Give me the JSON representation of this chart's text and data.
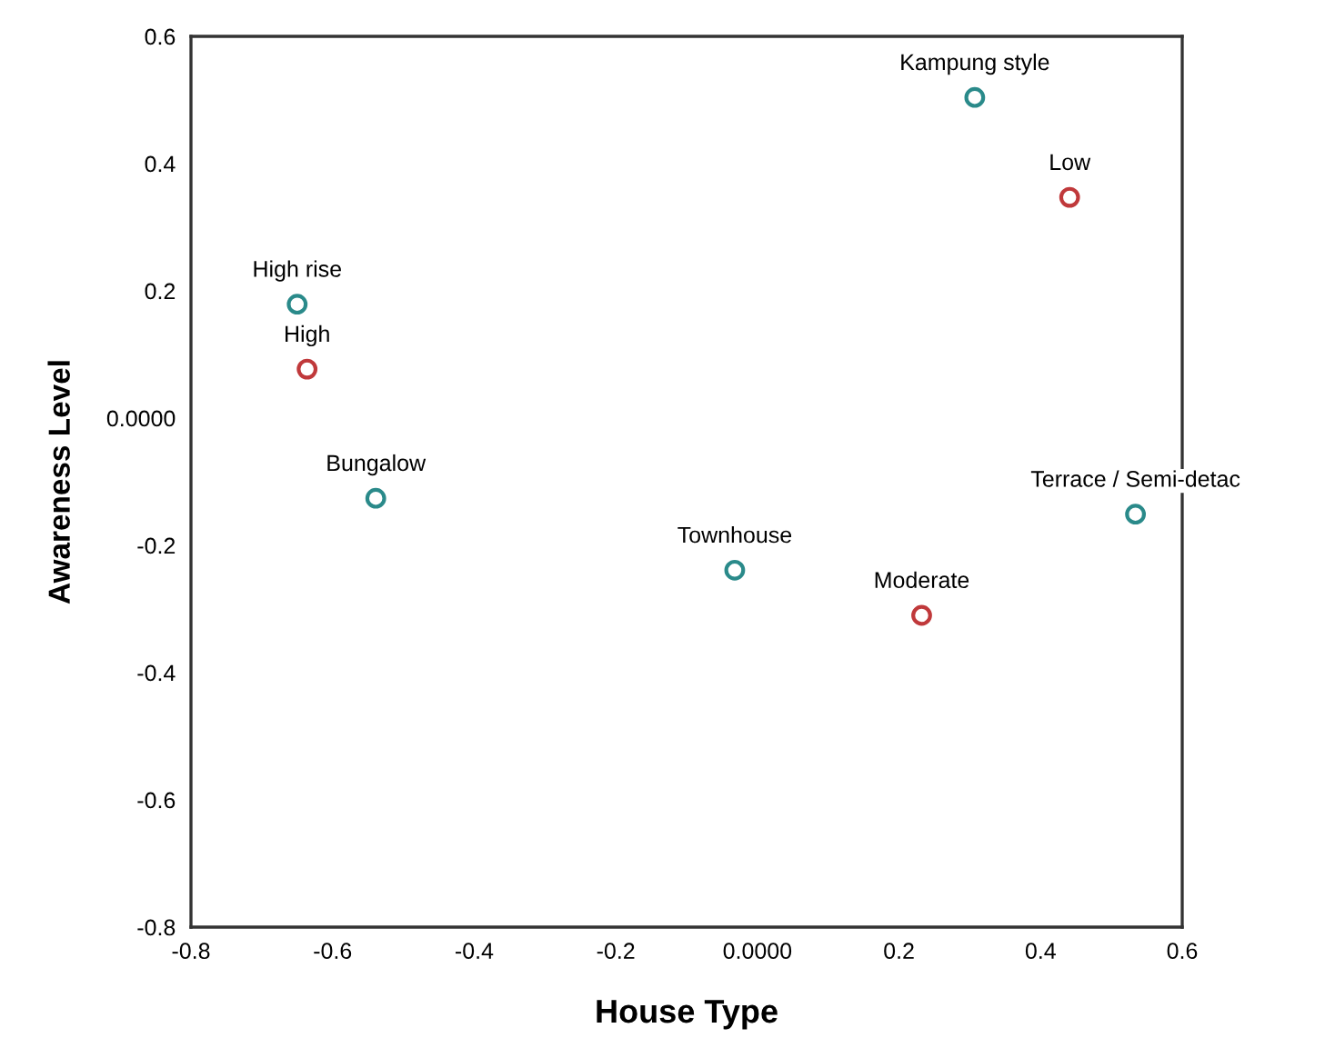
{
  "chart_data": {
    "type": "scatter",
    "xlabel": "House Type",
    "ylabel": "Awareness Level",
    "series": [
      {
        "color": "#2a8a8a",
        "x": [
          0.307,
          -0.65,
          -0.539,
          0.534,
          -0.032
        ],
        "values": [
          0.504,
          0.179,
          -0.126,
          -0.151,
          -0.239
        ]
      },
      {
        "color": "#c0393b",
        "x": [
          0.441,
          -0.636,
          0.232
        ],
        "values": [
          0.347,
          0.077,
          -0.31
        ]
      }
    ],
    "annotations": [
      {
        "text": "Kampung style",
        "x": 0.307,
        "y": 0.504
      },
      {
        "text": "High rise",
        "x": -0.65,
        "y": 0.179
      },
      {
        "text": "Bungalow",
        "x": -0.539,
        "y": -0.126
      },
      {
        "text": "Terrace / Semi-detac",
        "x": 0.534,
        "y": -0.151
      },
      {
        "text": "Townhouse",
        "x": -0.032,
        "y": -0.239
      },
      {
        "text": "Low",
        "x": 0.441,
        "y": 0.347
      },
      {
        "text": "High",
        "x": -0.636,
        "y": 0.077
      },
      {
        "text": "Moderate",
        "x": 0.232,
        "y": -0.31
      }
    ],
    "xlim": [
      -0.8,
      0.6
    ],
    "ylim": [
      -0.8,
      0.6
    ],
    "xticks": [
      -0.8,
      -0.6,
      -0.4,
      -0.2,
      {
        "value": 0,
        "label": "0.0000"
      },
      0.2,
      0.4,
      0.6
    ],
    "yticks": [
      -0.8,
      -0.6,
      -0.4,
      -0.2,
      {
        "value": 0,
        "label": "0.0000"
      },
      0.2,
      0.4,
      0.6
    ],
    "marker": "circle",
    "grid": false,
    "legend": false
  }
}
